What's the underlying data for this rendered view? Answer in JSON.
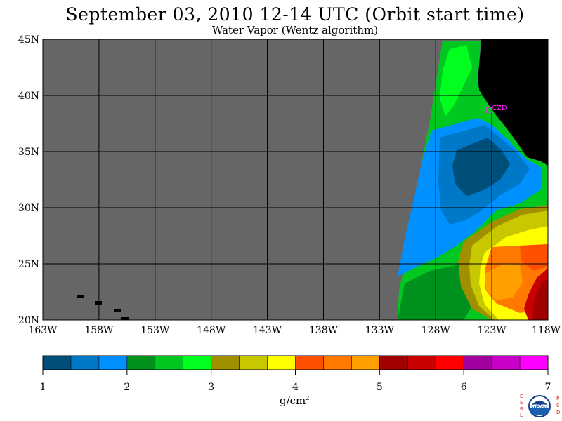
{
  "title": "September 03, 2010  12-14 UTC  (Orbit start time)",
  "subtitle": "Water Vapor (Wentz algorithm)",
  "map": {
    "lon_labels": [
      "163W",
      "158W",
      "153W",
      "148W",
      "143W",
      "138W",
      "133W",
      "128W",
      "123W",
      "118W"
    ],
    "lat_labels": [
      "45N",
      "40N",
      "35N",
      "30N",
      "25N",
      "20N"
    ],
    "lon_range": [
      -163,
      -118
    ],
    "lat_range": [
      20,
      45
    ],
    "station_label": "CZD",
    "colors": {
      "no_data": "#666666",
      "land": "#000000",
      "grid": "#000000",
      "station": "#ff22ff"
    }
  },
  "colorbar": {
    "labels": [
      "1",
      "2",
      "3",
      "4",
      "5",
      "6",
      "7"
    ],
    "colors": [
      "#004f7a",
      "#0078c8",
      "#0090ff",
      "#00901e",
      "#00c820",
      "#00ff1e",
      "#a09000",
      "#c8c800",
      "#ffff00",
      "#ff5000",
      "#ff7800",
      "#ffa000",
      "#a00000",
      "#c80000",
      "#ff0000",
      "#a000a0",
      "#c800c8",
      "#ff00ff"
    ],
    "units": "g/cm",
    "units_exp": "2"
  },
  "logo": {
    "left_letters": "ESRL",
    "right_letters": "PSD",
    "text": "NOAA"
  }
}
